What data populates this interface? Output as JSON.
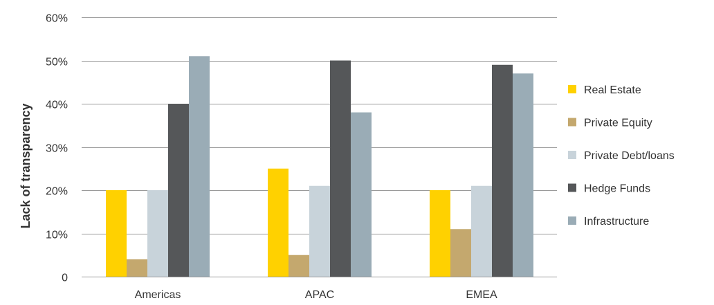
{
  "chart_data": {
    "type": "bar",
    "title": "",
    "xlabel": "",
    "ylabel": "Lack of transparency",
    "ylim": [
      0,
      60
    ],
    "y_ticks": [
      0,
      10,
      20,
      30,
      40,
      50,
      60
    ],
    "y_tick_labels": [
      "0",
      "10%",
      "20%",
      "30%",
      "40%",
      "50%",
      "60%"
    ],
    "grid": true,
    "legend_position": "right",
    "categories": [
      "Americas",
      "APAC",
      "EMEA"
    ],
    "series": [
      {
        "name": "Real Estate",
        "color": "#FFD100",
        "values": [
          20,
          25,
          20
        ]
      },
      {
        "name": "Private Equity",
        "color": "#C4A86E",
        "values": [
          4,
          5,
          11
        ]
      },
      {
        "name": "Private Debt/loans",
        "color": "#C8D3DA",
        "values": [
          20,
          21,
          21
        ]
      },
      {
        "name": "Hedge Funds",
        "color": "#555759",
        "values": [
          40,
          50,
          49
        ]
      },
      {
        "name": "Infrastructure",
        "color": "#9AACB6",
        "values": [
          51,
          38,
          47
        ]
      }
    ]
  }
}
